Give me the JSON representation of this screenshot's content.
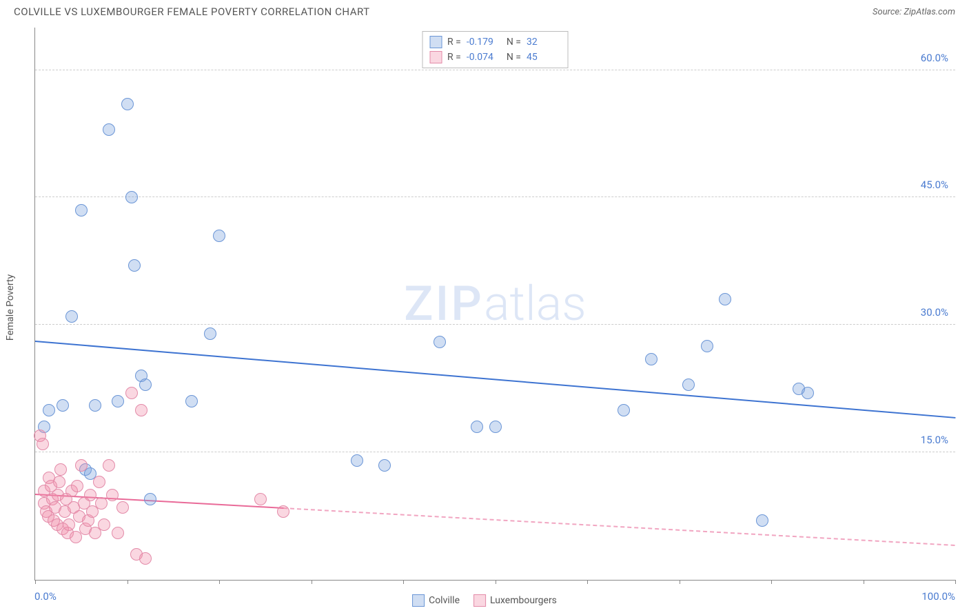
{
  "header": {
    "title": "COLVILLE VS LUXEMBOURGER FEMALE POVERTY CORRELATION CHART",
    "source_label": "Source:",
    "source_name": "ZipAtlas.com"
  },
  "watermark": {
    "left": "ZIP",
    "right": "atlas"
  },
  "chart": {
    "type": "scatter",
    "y_axis_label": "Female Poverty",
    "xlim": [
      0,
      100
    ],
    "ylim": [
      0,
      65
    ],
    "x_tick_positions": [
      0,
      10,
      20,
      30,
      40,
      50,
      60,
      70,
      80,
      90,
      100
    ],
    "x_tick_labels": {
      "0": "0.0%",
      "100": "100.0%"
    },
    "y_ticks": [
      15,
      30,
      45,
      60
    ],
    "y_tick_labels": {
      "15": "15.0%",
      "30": "30.0%",
      "45": "45.0%",
      "60": "60.0%"
    },
    "grid_color": "#cccccc",
    "axis_color": "#888888",
    "tick_label_color": "#4a7bd0",
    "background_color": "#ffffff",
    "series": [
      {
        "name": "Colville",
        "fill": "rgba(120,160,220,0.35)",
        "stroke": "#6a95d6",
        "marker_radius": 9,
        "trend": {
          "color": "#3d73d1",
          "width": 2,
          "y_at_x0": 28.0,
          "y_at_x100": 19.0,
          "solid_until_x": 100
        },
        "points": [
          [
            1,
            18
          ],
          [
            1.5,
            20
          ],
          [
            3,
            20.5
          ],
          [
            4,
            31
          ],
          [
            5,
            43.5
          ],
          [
            5.5,
            13
          ],
          [
            6,
            12.5
          ],
          [
            6.5,
            20.5
          ],
          [
            8,
            53
          ],
          [
            9,
            21
          ],
          [
            10,
            56
          ],
          [
            10.5,
            45
          ],
          [
            10.8,
            37
          ],
          [
            11.5,
            24
          ],
          [
            12,
            23
          ],
          [
            12.5,
            9.5
          ],
          [
            17,
            21
          ],
          [
            19,
            29
          ],
          [
            20,
            40.5
          ],
          [
            35,
            14
          ],
          [
            38,
            13.5
          ],
          [
            44,
            28
          ],
          [
            48,
            18
          ],
          [
            50,
            18
          ],
          [
            64,
            20
          ],
          [
            67,
            26
          ],
          [
            71,
            23
          ],
          [
            73,
            27.5
          ],
          [
            75,
            33
          ],
          [
            79,
            7
          ],
          [
            83,
            22.5
          ],
          [
            84,
            22
          ]
        ]
      },
      {
        "name": "Luxembourgers",
        "fill": "rgba(240,140,170,0.35)",
        "stroke": "#e38aa8",
        "marker_radius": 9,
        "trend": {
          "color": "#e96a98",
          "width": 2,
          "y_at_x0": 10.0,
          "y_at_x100": 4.0,
          "solid_until_x": 27
        },
        "points": [
          [
            0.5,
            17
          ],
          [
            0.8,
            16
          ],
          [
            1,
            10.5
          ],
          [
            1,
            9
          ],
          [
            1.2,
            8
          ],
          [
            1.4,
            7.5
          ],
          [
            1.5,
            12
          ],
          [
            1.7,
            11
          ],
          [
            1.9,
            9.5
          ],
          [
            2,
            7
          ],
          [
            2.2,
            8.5
          ],
          [
            2.4,
            6.5
          ],
          [
            2.5,
            10
          ],
          [
            2.6,
            11.5
          ],
          [
            2.8,
            13
          ],
          [
            3,
            6
          ],
          [
            3.2,
            8
          ],
          [
            3.4,
            9.5
          ],
          [
            3.5,
            5.5
          ],
          [
            3.7,
            6.5
          ],
          [
            4,
            10.5
          ],
          [
            4.2,
            8.5
          ],
          [
            4.4,
            5
          ],
          [
            4.6,
            11
          ],
          [
            4.8,
            7.5
          ],
          [
            5,
            13.5
          ],
          [
            5.3,
            9
          ],
          [
            5.5,
            6
          ],
          [
            5.8,
            7
          ],
          [
            6,
            10
          ],
          [
            6.2,
            8
          ],
          [
            6.5,
            5.5
          ],
          [
            7,
            11.5
          ],
          [
            7.2,
            9
          ],
          [
            7.5,
            6.5
          ],
          [
            8,
            13.5
          ],
          [
            8.4,
            10
          ],
          [
            9,
            5.5
          ],
          [
            9.5,
            8.5
          ],
          [
            10.5,
            22
          ],
          [
            11,
            3
          ],
          [
            11.5,
            20
          ],
          [
            12,
            2.5
          ],
          [
            24.5,
            9.5
          ],
          [
            27,
            8
          ]
        ]
      }
    ],
    "stats": [
      {
        "swatch_fill": "rgba(120,160,220,0.35)",
        "swatch_stroke": "#6a95d6",
        "R": "-0.179",
        "N": "32"
      },
      {
        "swatch_fill": "rgba(240,140,170,0.35)",
        "swatch_stroke": "#e38aa8",
        "R": "-0.074",
        "N": "45"
      }
    ],
    "legend": [
      {
        "label": "Colville",
        "swatch_fill": "rgba(120,160,220,0.35)",
        "swatch_stroke": "#6a95d6"
      },
      {
        "label": "Luxembourgers",
        "swatch_fill": "rgba(240,140,170,0.35)",
        "swatch_stroke": "#e38aa8"
      }
    ],
    "stats_labels": {
      "R": "R =",
      "N": "N ="
    }
  }
}
